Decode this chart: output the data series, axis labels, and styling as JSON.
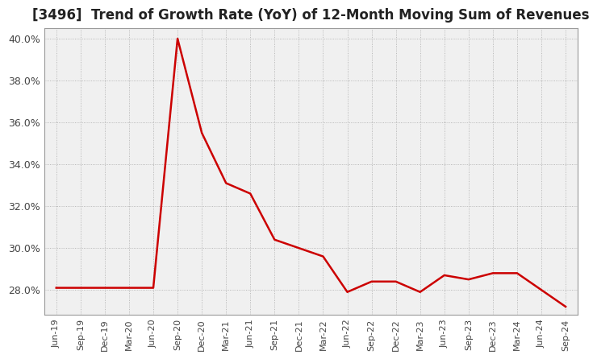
{
  "title": "[3496]  Trend of Growth Rate (YoY) of 12-Month Moving Sum of Revenues",
  "title_fontsize": 12,
  "background_color": "#ffffff",
  "plot_bg_color": "#f0f0f0",
  "line_color": "#cc0000",
  "line_width": 1.8,
  "grid_color": "#aaaaaa",
  "ylim": [
    0.268,
    0.405
  ],
  "yticks": [
    0.28,
    0.3,
    0.32,
    0.34,
    0.36,
    0.38,
    0.4
  ],
  "dates": [
    "Jun-19",
    "Sep-19",
    "Dec-19",
    "Mar-20",
    "Jun-20",
    "Sep-20",
    "Dec-20",
    "Mar-21",
    "Jun-21",
    "Sep-21",
    "Dec-21",
    "Mar-22",
    "Jun-22",
    "Sep-22",
    "Dec-22",
    "Mar-23",
    "Jun-23",
    "Sep-23",
    "Dec-23",
    "Mar-24",
    "Jun-24",
    "Sep-24"
  ],
  "values": [
    0.281,
    0.281,
    0.281,
    0.281,
    0.281,
    0.4,
    0.355,
    0.331,
    0.326,
    0.304,
    0.3,
    0.296,
    0.279,
    0.284,
    0.284,
    0.279,
    0.287,
    0.285,
    0.288,
    0.288,
    0.28,
    0.272
  ]
}
